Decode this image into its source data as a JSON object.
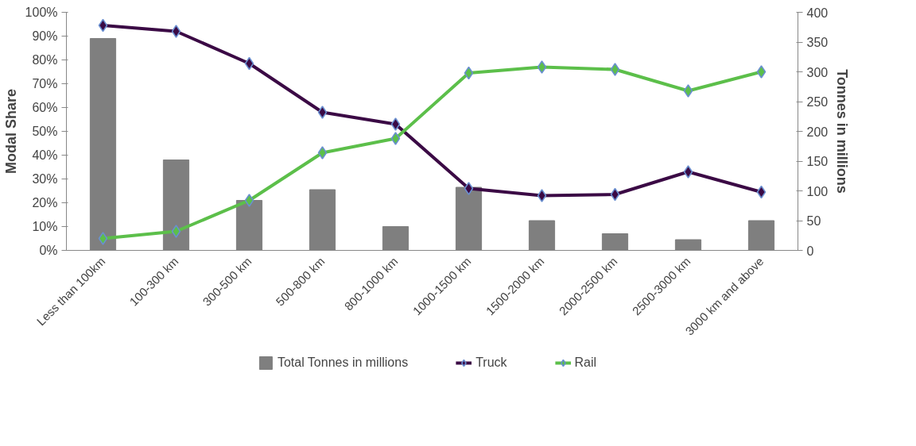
{
  "chart_data": {
    "type": "line",
    "categories": [
      "Less than 100km",
      "100-300 km",
      "300-500 km",
      "500-800 km",
      "800-1000 km",
      "1000-1500 km",
      "1500-2000 km",
      "2000-2500 km",
      "2500-3000 km",
      "3000 km and above"
    ],
    "ylabel": "Modal Share",
    "y2label": "Tonnes in millions",
    "ylim": [
      0,
      100
    ],
    "yticks": [
      {
        "value": 0,
        "label": "0%"
      },
      {
        "value": 10,
        "label": "10%"
      },
      {
        "value": 20,
        "label": "20%"
      },
      {
        "value": 30,
        "label": "30%"
      },
      {
        "value": 40,
        "label": "40%"
      },
      {
        "value": 50,
        "label": "50%"
      },
      {
        "value": 60,
        "label": "60%"
      },
      {
        "value": 70,
        "label": "70%"
      },
      {
        "value": 80,
        "label": "80%"
      },
      {
        "value": 90,
        "label": "90%"
      },
      {
        "value": 100,
        "label": "100%"
      }
    ],
    "y2lim": [
      0,
      400
    ],
    "y2ticks": [
      0,
      50,
      100,
      150,
      200,
      250,
      300,
      350,
      400
    ],
    "grid": false,
    "legend": "bottom",
    "marker": "diamond",
    "line_style": "solid",
    "series": [
      {
        "name": "Total Tonnes in millions",
        "type": "bar",
        "axis": "y2",
        "color": "#7f7f7f",
        "values": [
          356,
          152,
          84,
          102,
          40,
          106,
          50,
          28,
          18,
          50
        ]
      },
      {
        "name": "Truck",
        "color": "#3b0a45",
        "values": [
          94.5,
          92,
          78.5,
          58,
          53,
          26,
          23,
          23.5,
          33,
          24.5
        ]
      },
      {
        "name": "Rail",
        "color": "#5cbf4a",
        "values": [
          5,
          8,
          21,
          41,
          47,
          74.5,
          77,
          76,
          67,
          75
        ]
      }
    ]
  }
}
